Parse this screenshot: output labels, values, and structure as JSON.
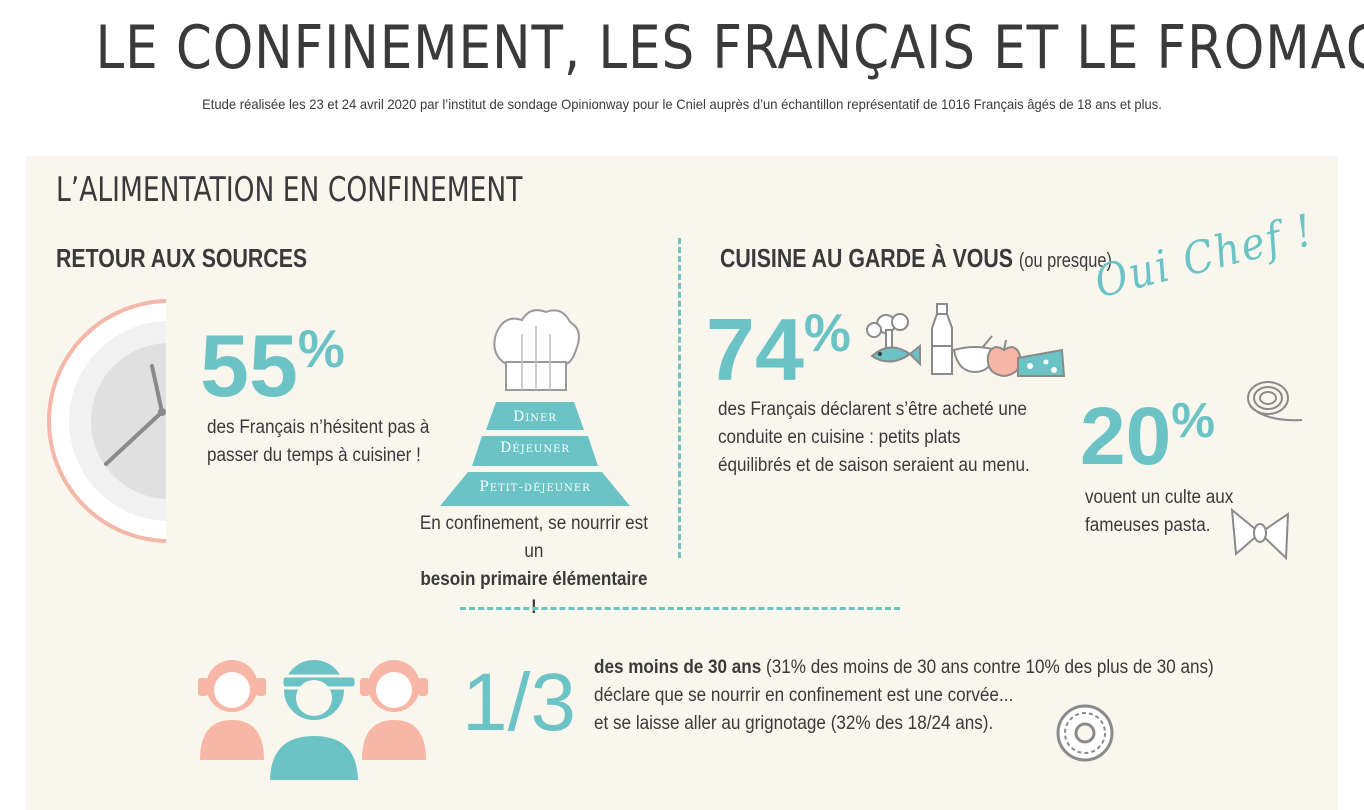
{
  "header": {
    "title": "LE CONFINEMENT, LES FRANÇAIS ET LE FROMAGE",
    "subtitle": "Etude réalisée les 23 et 24 avril 2020 par l’institut de sondage Opinionway pour le Cniel auprès d’un échantillon représentatif de 1016 Français âgés de 18 ans et plus."
  },
  "section": {
    "title": "L’ALIMENTATION EN CONFINEMENT"
  },
  "left": {
    "heading": "RETOUR AUX SOURCES",
    "stat_value": "55",
    "stat_unit": "%",
    "stat_text_line1": "des Français n’hésitent pas à",
    "stat_text_line2": "passer du temps à cuisiner !",
    "pyramid": {
      "top": "Diner",
      "middle": "Déjeuner",
      "bottom": "Petit-déjeuner"
    },
    "caption_line1": "En confinement, se nourrir est un",
    "caption_bold": "besoin primaire élémentaire !"
  },
  "right": {
    "heading": "CUISINE AU GARDE À VOUS",
    "heading_paren": "(ou presque)",
    "script_text": "Oui Chef !",
    "stat1_value": "74",
    "stat1_unit": "%",
    "stat1_line1": "des Français déclarent s’être acheté une",
    "stat1_line2": "conduite en cuisine : petits plats",
    "stat1_line3": "équilibrés et de saison seraient au menu.",
    "stat2_value": "20",
    "stat2_unit": "%",
    "stat2_line1": "vouent un culte aux",
    "stat2_line2": "fameuses pasta."
  },
  "bottom": {
    "stat_value": "1/3",
    "line1_bold": "des moins de 30 ans",
    "line1_rest": " (31% des moins de 30 ans contre 10% des plus de 30 ans)",
    "line2": "déclare que se nourrir en confinement est une corvée...",
    "line3": "et se laisse aller au grignotage (32% des 18/24 ans)."
  },
  "colors": {
    "accent": "#6cc3c6",
    "salmon": "#f7b6a6",
    "panel": "#f9f6ee",
    "text": "#3a3a3a"
  },
  "icons": [
    "clock-plate-icon",
    "chef-hat-icon",
    "fish-icon",
    "bottle-icon",
    "bowl-icon",
    "apple-icon",
    "cheese-icon",
    "spaghetti-icon",
    "farfalle-icon",
    "people-icon",
    "donut-icon"
  ]
}
